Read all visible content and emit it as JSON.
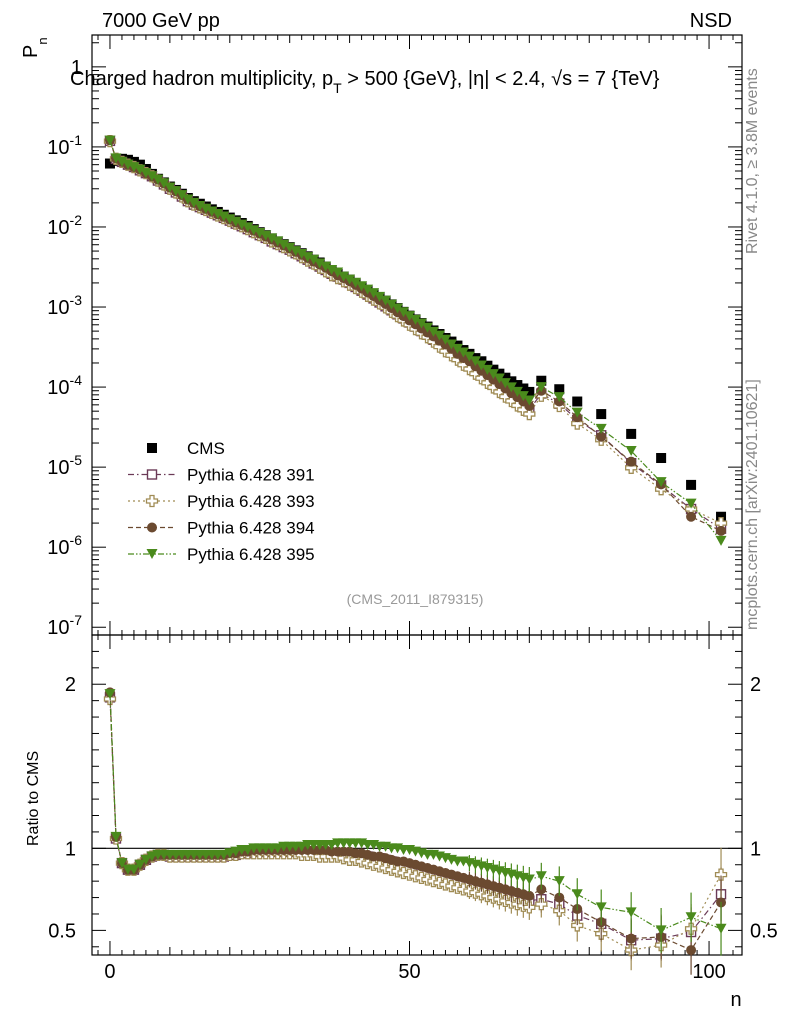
{
  "header": {
    "energy_label": "7000 GeV pp",
    "process_label": "NSD",
    "title": "Charged hadron multiplicity, p_T > 500 {GeV}, |η| < 2.4, √s = 7 {TeV}",
    "title_parts": {
      "a": "Charged hadron multiplicity, p",
      "sub": "T",
      "b": " > 500 {GeV}, |η| < 2.4, √s = 7 {TeV}"
    },
    "analysis_id": "(CMS_2011_I879315)",
    "side_rivet": "Rivet 4.1.0, ≥ 3.8M events",
    "side_mcplots": "mcplots.cern.ch [arXiv:2401.10621]"
  },
  "colors": {
    "cms": "#000000",
    "p391": "#6b3a57",
    "p393": "#a08c55",
    "p394": "#6b4a30",
    "p395": "#4a8a1c"
  },
  "chart_data": [
    {
      "type": "scatter",
      "panel": "main",
      "title": "Charged hadron multiplicity, p_T > 500 {GeV}, |η| < 2.4, √s = 7 {TeV}",
      "xlabel": "n",
      "ylabel": "P_n",
      "xlim": [
        -3,
        105.5
      ],
      "ylim": [
        8e-08,
        2.5
      ],
      "yscale": "log",
      "x_ticks": [
        0,
        50,
        100
      ],
      "y_ticks": [
        {
          "value": 1,
          "label": "1"
        },
        {
          "value": 0.1,
          "label": "10^-1"
        },
        {
          "value": 0.01,
          "label": "10^-2"
        },
        {
          "value": 0.001,
          "label": "10^-3"
        },
        {
          "value": 0.0001,
          "label": "10^-4"
        },
        {
          "value": 1e-05,
          "label": "10^-5"
        },
        {
          "value": 1e-06,
          "label": "10^-6"
        },
        {
          "value": 1e-07,
          "label": "10^-7"
        }
      ],
      "legend_position": "lower-left",
      "x": [
        0,
        1,
        2,
        3,
        4,
        5,
        6,
        7,
        8,
        9,
        10,
        11,
        12,
        13,
        14,
        15,
        16,
        17,
        18,
        19,
        20,
        21,
        22,
        23,
        24,
        25,
        26,
        27,
        28,
        29,
        30,
        31,
        32,
        33,
        34,
        35,
        36,
        37,
        38,
        39,
        40,
        41,
        42,
        43,
        44,
        45,
        46,
        47,
        48,
        49,
        50,
        51,
        52,
        53,
        54,
        55,
        56,
        57,
        58,
        59,
        60,
        61,
        62,
        63,
        64,
        65,
        66,
        67,
        68,
        69,
        70,
        72,
        75,
        78,
        82,
        87,
        92,
        97,
        102
      ],
      "series": [
        {
          "name": "CMS",
          "marker": "square-filled",
          "values": [
            0.062,
            0.067,
            0.071,
            0.069,
            0.065,
            0.06,
            0.053,
            0.046,
            0.04,
            0.036,
            0.032,
            0.029,
            0.026,
            0.023,
            0.021,
            0.0195,
            0.018,
            0.0166,
            0.0154,
            0.0142,
            0.0131,
            0.0121,
            0.0112,
            0.0103,
            0.0094,
            0.0086,
            0.0079,
            0.0072,
            0.0066,
            0.0061,
            0.0056,
            0.0051,
            0.0047,
            0.0043,
            0.0039,
            0.0036,
            0.0032,
            0.0029,
            0.0026,
            0.0024,
            0.0022,
            0.00198,
            0.00179,
            0.00162,
            0.00147,
            0.00132,
            0.0012,
            0.00108,
            0.00097,
            0.00087,
            0.00078,
            0.0007,
            0.00063,
            0.00057,
            0.00051,
            0.00046,
            0.00041,
            0.00037,
            0.00033,
            0.00029,
            0.00026,
            0.00023,
            0.00021,
            0.000185,
            0.000165,
            0.000147,
            0.000131,
            0.000118,
            0.000106,
            9.6e-05,
            8.7e-05,
            0.00012,
            9.4e-05,
            6.6e-05,
            4.6e-05,
            2.6e-05,
            1.3e-05,
            6e-06,
            2.4e-06
          ]
        },
        {
          "name": "Pythia 6.428 391",
          "marker": "square-open",
          "line": "dash-dot",
          "values": [
            0.119,
            0.071,
            0.065,
            0.06,
            0.056,
            0.051,
            0.047,
            0.043,
            0.038,
            0.034,
            0.03,
            0.027,
            0.024,
            0.021,
            0.019,
            0.0177,
            0.0164,
            0.0151,
            0.014,
            0.013,
            0.012,
            0.011,
            0.0102,
            0.0094,
            0.0086,
            0.0079,
            0.0073,
            0.0066,
            0.0061,
            0.0056,
            0.0052,
            0.0047,
            0.0043,
            0.0039,
            0.0035,
            0.0032,
            0.0029,
            0.0026,
            0.0024,
            0.0022,
            0.002,
            0.00178,
            0.0016,
            0.00143,
            0.00128,
            0.00114,
            0.00102,
            0.00091,
            0.00081,
            0.00072,
            0.00064,
            0.00057,
            0.0005,
            0.00045,
            0.00039,
            0.00035,
            0.00031,
            0.00027,
            0.00024,
            0.00021,
            0.000184,
            0.00016,
            0.000141,
            0.000124,
            0.000109,
            9.7e-05,
            8.5e-05,
            7.5e-05,
            6.6e-05,
            5.9e-05,
            5.2e-05,
            8.3e-05,
            6.2e-05,
            3.9e-05,
            2.5e-05,
            1.12e-05,
            5.9e-06,
            3e-06,
            1.7e-06
          ]
        },
        {
          "name": "Pythia 6.428 393",
          "marker": "cross-open",
          "line": "dotted",
          "values": [
            0.118,
            0.071,
            0.065,
            0.06,
            0.056,
            0.051,
            0.047,
            0.043,
            0.038,
            0.034,
            0.03,
            0.027,
            0.024,
            0.021,
            0.019,
            0.0176,
            0.0163,
            0.015,
            0.0139,
            0.0129,
            0.0119,
            0.011,
            0.0102,
            0.0094,
            0.0086,
            0.0079,
            0.0073,
            0.0066,
            0.0061,
            0.0056,
            0.0051,
            0.0047,
            0.0042,
            0.0038,
            0.0035,
            0.0031,
            0.0028,
            0.0025,
            0.0023,
            0.0021,
            0.0019,
            0.00173,
            0.00155,
            0.00138,
            0.00124,
            0.00111,
            0.00099,
            0.00087,
            0.00077,
            0.00068,
            0.0006,
            0.00053,
            0.00047,
            0.00042,
            0.00037,
            0.00032,
            0.00028,
            0.00025,
            0.00022,
            0.00019,
            0.000168,
            0.000147,
            0.000129,
            0.000113,
            9.9e-05,
            8.7e-05,
            7.6e-05,
            6.7e-05,
            5.9e-05,
            5.2e-05,
            4.6e-05,
            7.8e-05,
            5.8e-05,
            3.5e-05,
            2.2e-05,
            9.8e-06,
            5.3e-06,
            3e-06,
            2e-06
          ]
        },
        {
          "name": "Pythia 6.428 394",
          "marker": "circle-filled",
          "line": "dashed",
          "values": [
            0.121,
            0.072,
            0.065,
            0.06,
            0.056,
            0.052,
            0.047,
            0.043,
            0.039,
            0.035,
            0.031,
            0.028,
            0.025,
            0.022,
            0.02,
            0.0182,
            0.0168,
            0.0155,
            0.0144,
            0.0134,
            0.0124,
            0.0114,
            0.0106,
            0.0098,
            0.009,
            0.0083,
            0.0076,
            0.007,
            0.0064,
            0.0059,
            0.0054,
            0.0049,
            0.0045,
            0.0041,
            0.0037,
            0.0034,
            0.0031,
            0.0028,
            0.0025,
            0.0023,
            0.0021,
            0.00189,
            0.0017,
            0.00152,
            0.00137,
            0.00122,
            0.00109,
            0.00097,
            0.00086,
            0.00077,
            0.00068,
            0.00061,
            0.00054,
            0.00048,
            0.00043,
            0.00038,
            0.00034,
            0.0003,
            0.00026,
            0.00023,
            0.00021,
            0.000182,
            0.00016,
            0.000141,
            0.000124,
            0.000109,
            9.6e-05,
            8.4e-05,
            7.5e-05,
            6.6e-05,
            5.8e-05,
            9e-05,
            6.6e-05,
            4.2e-05,
            2.4e-05,
            1.17e-05,
            6.1e-06,
            2.4e-06,
            1.6e-06
          ]
        },
        {
          "name": "Pythia 6.428 395",
          "marker": "triangle-down-filled",
          "line": "dash-dot-dot",
          "values": [
            0.12,
            0.072,
            0.065,
            0.06,
            0.056,
            0.052,
            0.047,
            0.043,
            0.039,
            0.035,
            0.031,
            0.028,
            0.025,
            0.022,
            0.02,
            0.0183,
            0.0169,
            0.0156,
            0.0145,
            0.0135,
            0.0125,
            0.0116,
            0.0107,
            0.0099,
            0.0091,
            0.0084,
            0.0078,
            0.0072,
            0.0066,
            0.006,
            0.0055,
            0.005,
            0.0046,
            0.0042,
            0.0039,
            0.0035,
            0.0032,
            0.0029,
            0.0027,
            0.0024,
            0.0022,
            0.00201,
            0.00182,
            0.00165,
            0.00149,
            0.00134,
            0.0012,
            0.00107,
            0.00096,
            0.00086,
            0.00077,
            0.00069,
            0.00062,
            0.00055,
            0.00049,
            0.00044,
            0.00039,
            0.00034,
            0.0003,
            0.00027,
            0.00024,
            0.00021,
            0.000186,
            0.000164,
            0.000145,
            0.000128,
            0.000112,
            9.9e-05,
            8.7e-05,
            7.7e-05,
            6.8e-05,
            0.0001,
            7.5e-05,
            4.8e-05,
            3e-05,
            1.59e-05,
            6.5e-06,
            3.5e-06,
            1.2e-06
          ]
        }
      ]
    },
    {
      "type": "line",
      "panel": "ratio",
      "xlabel": "n",
      "ylabel": "Ratio to CMS",
      "xlim": [
        -3,
        105.5
      ],
      "ylim": [
        0.35,
        2.3
      ],
      "x_ticks": [
        0,
        50,
        100
      ],
      "y_ticks": [
        {
          "value": 0.5,
          "label": "0.5"
        },
        {
          "value": 1,
          "label": "1"
        },
        {
          "value": 2,
          "label": "2"
        }
      ],
      "reference_line": 1,
      "x": [
        0,
        1,
        2,
        3,
        4,
        5,
        6,
        7,
        8,
        9,
        10,
        11,
        12,
        13,
        14,
        15,
        16,
        17,
        18,
        19,
        20,
        21,
        22,
        23,
        24,
        25,
        26,
        27,
        28,
        29,
        30,
        31,
        32,
        33,
        34,
        35,
        36,
        37,
        38,
        39,
        40,
        41,
        42,
        43,
        44,
        45,
        46,
        47,
        48,
        49,
        50,
        51,
        52,
        53,
        54,
        55,
        56,
        57,
        58,
        59,
        60,
        61,
        62,
        63,
        64,
        65,
        66,
        67,
        68,
        69,
        70,
        72,
        75,
        78,
        82,
        87,
        92,
        97,
        102
      ],
      "series": [
        {
          "name": "Pythia 6.428 391",
          "values": [
            1.92,
            1.06,
            0.91,
            0.87,
            0.87,
            0.9,
            0.93,
            0.95,
            0.96,
            0.96,
            0.95,
            0.95,
            0.95,
            0.95,
            0.95,
            0.95,
            0.95,
            0.95,
            0.95,
            0.95,
            0.96,
            0.96,
            0.97,
            0.97,
            0.98,
            0.98,
            0.98,
            0.98,
            0.98,
            0.98,
            0.98,
            0.98,
            0.98,
            0.98,
            0.98,
            0.97,
            0.97,
            0.97,
            0.97,
            0.97,
            0.96,
            0.96,
            0.95,
            0.95,
            0.94,
            0.94,
            0.93,
            0.92,
            0.91,
            0.9,
            0.89,
            0.88,
            0.87,
            0.86,
            0.85,
            0.84,
            0.83,
            0.82,
            0.81,
            0.8,
            0.79,
            0.78,
            0.77,
            0.76,
            0.75,
            0.74,
            0.72,
            0.71,
            0.7,
            0.69,
            0.68,
            0.69,
            0.66,
            0.59,
            0.54,
            0.44,
            0.45,
            0.49,
            0.72
          ]
        },
        {
          "name": "Pythia 6.428 393",
          "values": [
            1.91,
            1.06,
            0.91,
            0.87,
            0.87,
            0.9,
            0.93,
            0.95,
            0.96,
            0.96,
            0.95,
            0.95,
            0.95,
            0.95,
            0.95,
            0.95,
            0.95,
            0.95,
            0.95,
            0.95,
            0.96,
            0.96,
            0.97,
            0.97,
            0.97,
            0.97,
            0.97,
            0.97,
            0.97,
            0.97,
            0.97,
            0.97,
            0.96,
            0.96,
            0.96,
            0.95,
            0.95,
            0.95,
            0.95,
            0.94,
            0.93,
            0.93,
            0.92,
            0.91,
            0.9,
            0.89,
            0.88,
            0.87,
            0.86,
            0.85,
            0.84,
            0.83,
            0.82,
            0.81,
            0.8,
            0.79,
            0.78,
            0.77,
            0.76,
            0.75,
            0.74,
            0.73,
            0.72,
            0.71,
            0.7,
            0.69,
            0.68,
            0.67,
            0.66,
            0.65,
            0.64,
            0.66,
            0.62,
            0.53,
            0.48,
            0.38,
            0.41,
            0.51,
            0.84
          ]
        },
        {
          "name": "Pythia 6.428 394",
          "values": [
            1.95,
            1.07,
            0.91,
            0.87,
            0.87,
            0.9,
            0.93,
            0.95,
            0.96,
            0.96,
            0.96,
            0.96,
            0.96,
            0.96,
            0.96,
            0.96,
            0.96,
            0.96,
            0.96,
            0.96,
            0.97,
            0.97,
            0.98,
            0.98,
            0.99,
            0.99,
            0.99,
            0.99,
            0.99,
            0.99,
            0.99,
            0.99,
            0.99,
            0.99,
            0.99,
            0.99,
            0.99,
            0.98,
            0.98,
            0.98,
            0.98,
            0.97,
            0.97,
            0.96,
            0.95,
            0.95,
            0.94,
            0.93,
            0.92,
            0.92,
            0.91,
            0.9,
            0.89,
            0.88,
            0.87,
            0.86,
            0.85,
            0.84,
            0.83,
            0.82,
            0.81,
            0.8,
            0.79,
            0.78,
            0.77,
            0.76,
            0.75,
            0.74,
            0.73,
            0.72,
            0.71,
            0.75,
            0.7,
            0.63,
            0.55,
            0.45,
            0.46,
            0.38,
            0.67
          ]
        },
        {
          "name": "Pythia 6.428 395",
          "values": [
            1.94,
            1.07,
            0.91,
            0.87,
            0.87,
            0.9,
            0.93,
            0.95,
            0.96,
            0.96,
            0.96,
            0.96,
            0.96,
            0.96,
            0.96,
            0.96,
            0.96,
            0.96,
            0.96,
            0.96,
            0.97,
            0.98,
            0.99,
            0.99,
            1.0,
            1.0,
            1.0,
            1.0,
            1.0,
            1.01,
            1.01,
            1.01,
            1.01,
            1.02,
            1.02,
            1.02,
            1.02,
            1.02,
            1.03,
            1.03,
            1.03,
            1.03,
            1.03,
            1.02,
            1.02,
            1.01,
            1.01,
            1.0,
            1.0,
            0.99,
            0.99,
            0.98,
            0.97,
            0.96,
            0.96,
            0.95,
            0.94,
            0.93,
            0.92,
            0.92,
            0.91,
            0.9,
            0.89,
            0.88,
            0.87,
            0.86,
            0.85,
            0.84,
            0.83,
            0.82,
            0.81,
            0.83,
            0.8,
            0.72,
            0.64,
            0.61,
            0.5,
            0.58,
            0.51
          ]
        }
      ]
    }
  ]
}
